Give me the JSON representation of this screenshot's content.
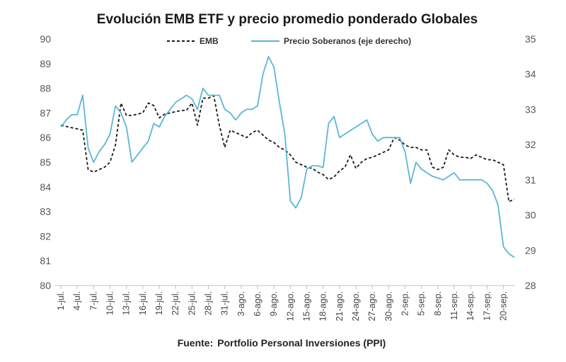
{
  "chart_data": {
    "type": "line",
    "title": "Evolución EMB ETF y precio promedio ponderado Globales",
    "source_label": "Fuente:",
    "source_value": "Portfolio Personal Inversiones (PPI)",
    "left_axis": {
      "range": [
        80,
        90
      ],
      "ticks": [
        "80",
        "81",
        "82",
        "83",
        "84",
        "85",
        "86",
        "87",
        "88",
        "89",
        "90"
      ]
    },
    "right_axis": {
      "range": [
        28,
        35
      ],
      "ticks": [
        "28",
        "29",
        "30",
        "31",
        "32",
        "33",
        "34",
        "35"
      ]
    },
    "x_tick_labels": [
      "1-jul.",
      "4-jul.",
      "7-jul.",
      "10-jul.",
      "13-jul.",
      "16-jul.",
      "19-jul.",
      "22-jul.",
      "25-jul.",
      "28-jul.",
      "31-jul.",
      "3-ago.",
      "6-ago.",
      "9-ago.",
      "12-ago.",
      "15-ago.",
      "18-ago.",
      "21-ago.",
      "24-ago.",
      "27-ago.",
      "30-ago.",
      "2-sep.",
      "5-sep.",
      "8-sep.",
      "11-sep.",
      "14-sep.",
      "17-sep.",
      "20-sep."
    ],
    "legend_position": "top",
    "series": [
      {
        "name": "EMB",
        "axis": "left",
        "style": "dashed",
        "color": "#1a1a1a",
        "x": [
          0,
          1,
          2,
          3,
          4,
          5,
          6,
          7,
          8,
          9,
          10,
          11,
          12,
          13,
          14,
          15,
          16,
          17,
          18,
          19,
          20,
          21,
          22,
          23,
          24,
          25,
          26,
          27,
          28,
          29,
          30,
          31,
          32,
          33,
          34,
          35,
          36,
          37,
          38,
          39,
          40,
          41,
          42,
          43,
          44,
          45,
          46,
          47,
          48,
          49,
          50,
          51,
          52,
          53,
          54,
          55,
          56,
          57,
          58,
          59,
          60,
          61,
          62,
          63,
          64,
          65,
          66,
          67,
          68,
          69,
          70,
          71,
          72,
          73,
          74,
          75,
          76,
          77,
          78,
          79,
          80,
          81,
          82,
          83
        ],
        "values": [
          86.5,
          86.45,
          86.4,
          86.35,
          86.3,
          84.7,
          84.6,
          84.7,
          84.8,
          85.0,
          85.7,
          87.4,
          86.9,
          86.9,
          86.95,
          87.0,
          87.4,
          87.3,
          86.8,
          86.95,
          87.0,
          87.05,
          87.1,
          87.1,
          87.4,
          86.5,
          87.6,
          87.6,
          87.7,
          86.5,
          85.6,
          86.3,
          86.2,
          86.1,
          86.0,
          86.2,
          86.3,
          86.1,
          85.9,
          85.8,
          85.6,
          85.5,
          85.3,
          85.0,
          84.9,
          84.8,
          84.75,
          84.6,
          84.5,
          84.3,
          84.4,
          84.65,
          84.8,
          85.3,
          84.75,
          85.0,
          85.15,
          85.2,
          85.3,
          85.4,
          85.5,
          86.0,
          85.9,
          85.7,
          85.6,
          85.6,
          85.5,
          85.5,
          84.8,
          84.7,
          84.8,
          85.5,
          85.3,
          85.2,
          85.2,
          85.15,
          85.3,
          85.2,
          85.1,
          85.1,
          85.0,
          84.9,
          83.4,
          83.5
        ]
      },
      {
        "name": "Precio Soberanos (eje derecho)",
        "axis": "right",
        "style": "solid",
        "color": "#5bb6d6",
        "x": [
          0,
          1,
          2,
          3,
          4,
          5,
          6,
          7,
          8,
          9,
          10,
          11,
          12,
          13,
          14,
          15,
          16,
          17,
          18,
          19,
          20,
          21,
          22,
          23,
          24,
          25,
          26,
          27,
          28,
          29,
          30,
          31,
          32,
          33,
          34,
          35,
          36,
          37,
          38,
          39,
          40,
          41,
          42,
          43,
          44,
          45,
          46,
          47,
          48,
          49,
          50,
          51,
          52,
          53,
          54,
          55,
          56,
          57,
          58,
          59,
          60,
          61,
          62,
          63,
          64,
          65,
          66,
          67,
          68,
          69,
          70,
          71,
          72,
          73,
          74,
          75,
          76,
          77,
          78,
          79,
          80,
          81,
          82,
          83
        ],
        "values": [
          32.5,
          32.7,
          32.85,
          32.85,
          33.4,
          31.9,
          31.5,
          31.8,
          32.0,
          32.3,
          33.1,
          32.9,
          32.5,
          31.5,
          31.7,
          31.9,
          32.1,
          32.6,
          32.5,
          32.8,
          33.0,
          33.2,
          33.3,
          33.4,
          33.3,
          33.0,
          33.6,
          33.4,
          33.4,
          33.4,
          33.0,
          32.9,
          32.7,
          32.9,
          33.0,
          33.0,
          33.1,
          34.0,
          34.5,
          34.2,
          33.2,
          32.3,
          30.4,
          30.2,
          30.5,
          31.3,
          31.4,
          31.4,
          31.35,
          32.6,
          32.8,
          32.2,
          32.3,
          32.4,
          32.5,
          32.6,
          32.7,
          32.3,
          32.1,
          32.2,
          32.2,
          32.2,
          32.2,
          31.8,
          30.9,
          31.5,
          31.3,
          31.2,
          31.1,
          31.05,
          31.0,
          31.1,
          31.2,
          31.0,
          31.0,
          31.0,
          31.0,
          31.0,
          30.9,
          30.7,
          30.3,
          29.1,
          28.9,
          28.8
        ]
      }
    ]
  }
}
